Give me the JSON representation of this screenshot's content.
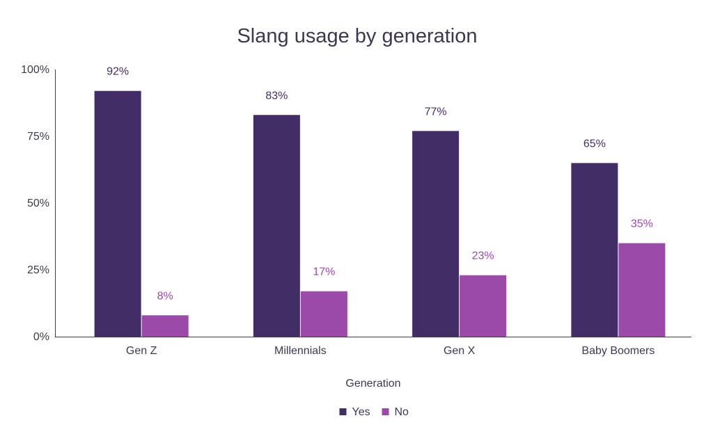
{
  "chart_data": {
    "type": "bar",
    "title": "Slang usage by generation",
    "xlabel": "Generation",
    "ylabel": "",
    "categories": [
      "Gen Z",
      "Millennials",
      "Gen X",
      "Baby Boomers"
    ],
    "series": [
      {
        "name": "Yes",
        "values": [
          92,
          83,
          77,
          65
        ],
        "labels": [
          "92%",
          "83%",
          "77%",
          "65%"
        ],
        "color": "#432d67"
      },
      {
        "name": "No",
        "values": [
          8,
          17,
          23,
          35
        ],
        "labels": [
          "8%",
          "17%",
          "23%",
          "35%"
        ],
        "color": "#9b4aa9"
      }
    ],
    "ylim": [
      0,
      100
    ],
    "yticks": [
      0,
      25,
      50,
      75,
      100
    ],
    "ytick_labels": [
      "0%",
      "25%",
      "50%",
      "75%",
      "100%"
    ],
    "grid": false,
    "legend_position": "bottom-center"
  }
}
